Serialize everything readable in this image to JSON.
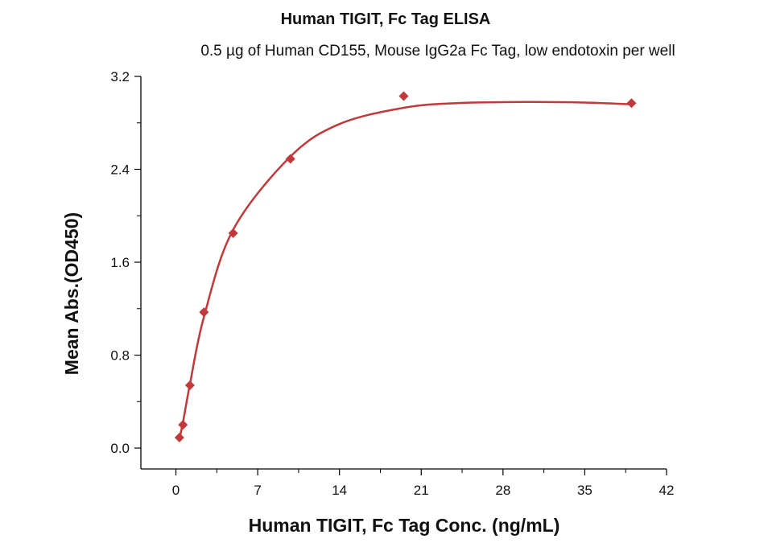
{
  "chart_data": {
    "type": "scatter",
    "title": "Human TIGIT, Fc Tag ELISA",
    "subtitle": "0.5 µg of Human CD155, Mouse IgG2a Fc Tag, low endotoxin per well",
    "xlabel": "Human TIGIT, Fc Tag Conc. (ng/mL)",
    "ylabel": "Mean Abs.(OD450)",
    "xlim": [
      -3,
      42
    ],
    "ylim": [
      -0.18,
      3.2
    ],
    "x_ticks": [
      0,
      7,
      14,
      21,
      28,
      35,
      42
    ],
    "x_tick_labels": [
      "0",
      "7",
      "14",
      "21",
      "28",
      "35",
      "42"
    ],
    "y_ticks": [
      0.0,
      0.8,
      1.6,
      2.4,
      3.2
    ],
    "y_tick_labels": [
      "0.0",
      "0.8",
      "1.6",
      "2.4",
      "3.2"
    ],
    "grid": false,
    "series": [
      {
        "marker": "diamond",
        "color": "#c0393b",
        "x": [
          0.3,
          0.6,
          1.2,
          2.4,
          4.9,
          9.8,
          19.5,
          39.0
        ],
        "y": [
          0.09,
          0.2,
          0.54,
          1.17,
          1.85,
          2.49,
          3.03,
          2.97
        ]
      }
    ],
    "fit_curve": {
      "color": "#c0393b",
      "x": [
        0.3,
        0.6,
        1.2,
        2.4,
        4.9,
        9.8,
        14.0,
        19.5,
        24.0,
        30.0,
        35.0,
        39.0
      ],
      "y": [
        0.08,
        0.22,
        0.55,
        1.13,
        1.88,
        2.51,
        2.79,
        2.93,
        2.97,
        2.98,
        2.975,
        2.96
      ]
    }
  }
}
